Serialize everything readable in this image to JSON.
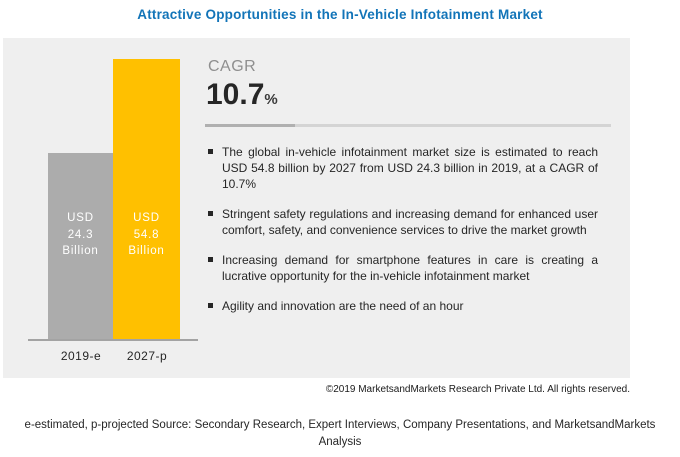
{
  "title": "Attractive Opportunities in the In-Vehicle Infotainment Market",
  "colors": {
    "title_blue": "#1274b8",
    "panel_bg": "#efefef",
    "bar_2019": "#acacac",
    "bar_2027": "#ffc000",
    "text_dark": "#262626",
    "cagr_gray": "#8f8f8f",
    "axis_line": "#a3a3a3"
  },
  "chart_data": {
    "type": "bar",
    "title": "Attractive Opportunities in the In-Vehicle Infotainment Market",
    "unit": "USD billion",
    "categories": [
      "2019-e",
      "2027-p"
    ],
    "values": [
      24.3,
      54.8
    ],
    "bars": [
      {
        "category": "2019-e",
        "value": 24.3,
        "color": "#acacac",
        "label_lines": [
          "USD",
          "24.3",
          "Billion"
        ]
      },
      {
        "category": "2027-p",
        "value": 54.8,
        "color": "#ffc000",
        "label_lines": [
          "USD",
          "54.8",
          "Billion"
        ]
      }
    ],
    "cagr_percent": 10.7,
    "xlabel": "",
    "ylabel": "",
    "ylim": [
      0,
      60
    ],
    "grid": false,
    "legend": false
  },
  "cagr": {
    "label": "CAGR",
    "value": "10.7",
    "unit": "%"
  },
  "bullets": [
    "The global in-vehicle infotainment market size is estimated to reach USD 54.8 billion by 2027 from USD 24.3 billion in 2019, at a CAGR of 10.7%",
    "Stringent safety regulations and increasing demand for enhanced user comfort, safety, and convenience services to drive the market growth",
    "Increasing demand for smartphone features in care is creating a lucrative opportunity for the in-vehicle infotainment market",
    "Agility and innovation are the need of an hour"
  ],
  "copyright": "©2019 MarketsandMarkets Research Private Ltd. All rights reserved.",
  "footer_note": "e-estimated, p-projected Source: Secondary Research, Expert Interviews, Company Presentations, and MarketsandMarkets Analysis"
}
